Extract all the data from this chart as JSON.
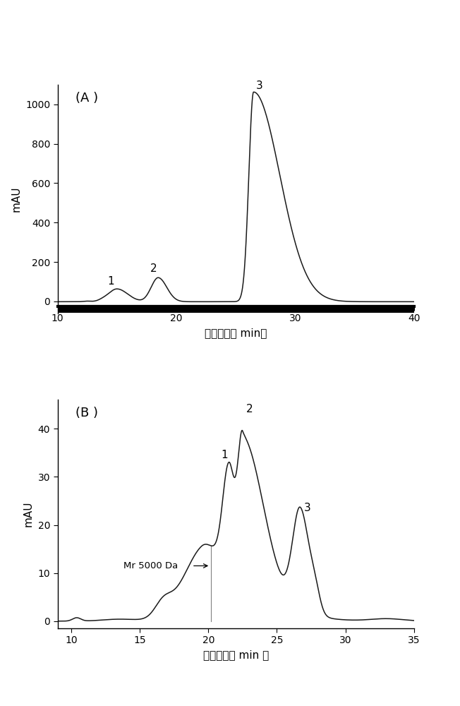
{
  "panel_A": {
    "label": "(A )",
    "xlim": [
      10,
      40
    ],
    "ylim": [
      -60,
      1100
    ],
    "ylim_display": [
      -60,
      1100
    ],
    "yticks": [
      0,
      200,
      400,
      600,
      800,
      1000
    ],
    "xticks": [
      10,
      20,
      30,
      40
    ],
    "xlabel": "保留时间（ min）",
    "ylabel": "mAU"
  },
  "panel_B": {
    "label": "(B )",
    "xlim": [
      9,
      35
    ],
    "ylim": [
      -1.5,
      46
    ],
    "yticks": [
      0,
      10,
      20,
      30,
      40
    ],
    "xticks": [
      10,
      15,
      20,
      25,
      30,
      35
    ],
    "xlabel": "保留时间（ min ）",
    "ylabel": "mAU",
    "vline_x": 20.2,
    "annotation_text": "Mr 5000 Da"
  },
  "line_color": "#1a1a1a",
  "line_width": 1.1,
  "background_color": "#ffffff",
  "font_size_label": 13,
  "font_size_peak": 11,
  "font_size_axis": 11
}
